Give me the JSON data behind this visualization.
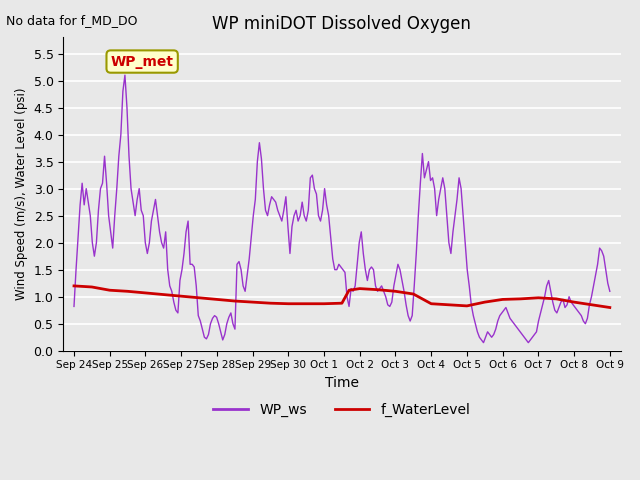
{
  "title": "WP miniDOT Dissolved Oxygen",
  "top_left_text": "No data for f_MD_DO",
  "xlabel": "Time",
  "ylabel": "Wind Speed (m/s), Water Level (psi)",
  "ylim": [
    0.0,
    5.8
  ],
  "yticks": [
    0.0,
    0.5,
    1.0,
    1.5,
    2.0,
    2.5,
    3.0,
    3.5,
    4.0,
    4.5,
    5.0,
    5.5
  ],
  "legend_labels": [
    "WP_ws",
    "f_WaterLevel"
  ],
  "legend_colors": [
    "#9933CC",
    "#CC0000"
  ],
  "wp_met_label": "WP_met",
  "wp_met_box_facecolor": "#FFFFCC",
  "wp_met_box_edgecolor": "#999900",
  "wp_met_text_color": "#CC0000",
  "ws_color": "#9933CC",
  "wl_color": "#CC0000",
  "ws_linewidth": 1.0,
  "wl_linewidth": 2.0,
  "x_tick_labels": [
    "Sep 24",
    "Sep 25",
    "Sep 26",
    "Sep 27",
    "Sep 28",
    "Sep 29",
    "Sep 30",
    "Oct 1",
    "Oct 2",
    "Oct 3",
    "Oct 4",
    "Oct 5",
    "Oct 6",
    "Oct 7",
    "Oct 8",
    "Oct 9"
  ],
  "x_tick_positions": [
    0,
    1,
    2,
    3,
    4,
    5,
    6,
    7,
    8,
    9,
    10,
    11,
    12,
    13,
    14,
    15
  ],
  "xlim": [
    -0.3,
    15.3
  ],
  "ws_y": [
    0.82,
    1.5,
    2.1,
    2.7,
    3.1,
    2.7,
    3.0,
    2.75,
    2.5,
    2.0,
    1.75,
    2.0,
    2.6,
    3.0,
    3.1,
    3.6,
    3.1,
    2.5,
    2.2,
    1.9,
    2.5,
    3.0,
    3.6,
    4.0,
    4.8,
    5.1,
    4.5,
    3.6,
    3.0,
    2.75,
    2.5,
    2.8,
    3.0,
    2.6,
    2.5,
    2.0,
    1.8,
    2.0,
    2.4,
    2.6,
    2.8,
    2.5,
    2.2,
    2.0,
    1.9,
    2.2,
    1.5,
    1.2,
    1.1,
    0.9,
    0.75,
    0.7,
    1.3,
    1.5,
    1.8,
    2.2,
    2.4,
    1.6,
    1.6,
    1.55,
    1.2,
    0.65,
    0.55,
    0.4,
    0.25,
    0.22,
    0.3,
    0.5,
    0.6,
    0.65,
    0.62,
    0.5,
    0.35,
    0.2,
    0.3,
    0.5,
    0.62,
    0.7,
    0.5,
    0.4,
    1.6,
    1.65,
    1.5,
    1.2,
    1.1,
    1.4,
    1.7,
    2.1,
    2.5,
    2.8,
    3.5,
    3.85,
    3.55,
    3.0,
    2.6,
    2.5,
    2.7,
    2.85,
    2.8,
    2.75,
    2.6,
    2.5,
    2.4,
    2.6,
    2.85,
    2.3,
    1.8,
    2.3,
    2.5,
    2.6,
    2.4,
    2.5,
    2.75,
    2.5,
    2.4,
    2.6,
    3.2,
    3.25,
    3.0,
    2.9,
    2.5,
    2.4,
    2.6,
    3.0,
    2.7,
    2.5,
    2.1,
    1.7,
    1.5,
    1.5,
    1.6,
    1.55,
    1.5,
    1.45,
    1.0,
    0.82,
    1.15,
    1.1,
    1.2,
    1.6,
    2.0,
    2.2,
    1.8,
    1.5,
    1.3,
    1.5,
    1.55,
    1.5,
    1.2,
    1.1,
    1.15,
    1.2,
    1.1,
    1.0,
    0.85,
    0.82,
    0.9,
    1.2,
    1.4,
    1.6,
    1.5,
    1.3,
    1.1,
    0.85,
    0.65,
    0.55,
    0.65,
    1.2,
    1.8,
    2.5,
    3.1,
    3.65,
    3.2,
    3.35,
    3.5,
    3.15,
    3.2,
    3.0,
    2.5,
    2.8,
    3.0,
    3.2,
    3.0,
    2.5,
    2.0,
    1.8,
    2.2,
    2.5,
    2.8,
    3.2,
    3.0,
    2.5,
    2.0,
    1.5,
    1.2,
    0.85,
    0.65,
    0.5,
    0.35,
    0.25,
    0.2,
    0.15,
    0.25,
    0.35,
    0.3,
    0.25,
    0.3,
    0.4,
    0.55,
    0.65,
    0.7,
    0.75,
    0.8,
    0.7,
    0.6,
    0.55,
    0.5,
    0.45,
    0.4,
    0.35,
    0.3,
    0.25,
    0.2,
    0.15,
    0.2,
    0.25,
    0.3,
    0.35,
    0.55,
    0.7,
    0.85,
    1.0,
    1.2,
    1.3,
    1.1,
    0.9,
    0.75,
    0.7,
    0.8,
    0.9,
    0.95,
    0.8,
    0.85,
    1.0,
    0.9,
    0.85,
    0.8,
    0.75,
    0.7,
    0.65,
    0.55,
    0.5,
    0.6,
    0.85,
    1.0,
    1.2,
    1.4,
    1.6,
    1.9,
    1.85,
    1.75,
    1.5,
    1.25,
    1.1
  ],
  "wl_x": [
    0.0,
    0.5,
    1.0,
    1.5,
    2.0,
    2.5,
    3.0,
    3.5,
    4.0,
    4.5,
    5.0,
    5.5,
    6.0,
    6.5,
    7.0,
    7.5,
    7.7,
    8.0,
    8.5,
    9.0,
    9.5,
    10.0,
    10.5,
    11.0,
    11.5,
    12.0,
    12.5,
    13.0,
    13.5,
    14.0,
    14.5,
    15.0
  ],
  "wl_y": [
    1.2,
    1.18,
    1.12,
    1.1,
    1.07,
    1.04,
    1.01,
    0.98,
    0.95,
    0.92,
    0.9,
    0.88,
    0.87,
    0.87,
    0.87,
    0.88,
    1.12,
    1.15,
    1.13,
    1.1,
    1.05,
    0.87,
    0.85,
    0.83,
    0.9,
    0.95,
    0.96,
    0.98,
    0.96,
    0.9,
    0.85,
    0.8
  ]
}
